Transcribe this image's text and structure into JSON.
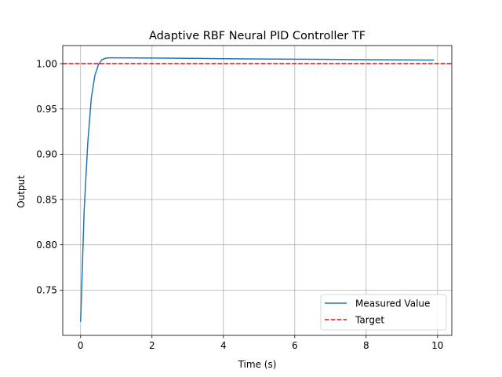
{
  "chart_data": {
    "type": "line",
    "title": "Adaptive RBF Neural PID Controller TF",
    "xlabel": "Time (s)",
    "ylabel": "Output",
    "xlim": [
      -0.5,
      10.4
    ],
    "ylim": [
      0.7,
      1.02
    ],
    "xticks": [
      0,
      2,
      4,
      6,
      8,
      10
    ],
    "yticks": [
      0.75,
      0.8,
      0.85,
      0.9,
      0.95,
      1.0
    ],
    "xtick_labels": [
      "0",
      "2",
      "4",
      "6",
      "8",
      "10"
    ],
    "ytick_labels": [
      "0.75",
      "0.80",
      "0.85",
      "0.90",
      "0.95",
      "1.00"
    ],
    "grid": true,
    "legend_position": "lower-right",
    "series": [
      {
        "name": "Measured Value",
        "color": "#1f77b4",
        "style": "solid",
        "x": [
          0,
          0.1,
          0.2,
          0.3,
          0.4,
          0.5,
          0.6,
          0.7,
          0.8,
          0.9,
          1.0,
          1.5,
          2,
          3,
          4,
          5,
          6,
          7,
          8,
          9,
          9.9
        ],
        "y": [
          0.715,
          0.838,
          0.912,
          0.962,
          0.987,
          0.999,
          1.0045,
          1.006,
          1.0064,
          1.0064,
          1.0064,
          1.0063,
          1.0062,
          1.0059,
          1.0055,
          1.0052,
          1.0049,
          1.0047,
          1.0044,
          1.0042,
          1.004
        ]
      },
      {
        "name": "Target",
        "color": "#ff0000",
        "style": "dashed",
        "x": [
          -0.5,
          10.4
        ],
        "y": [
          1.0,
          1.0
        ]
      }
    ]
  }
}
